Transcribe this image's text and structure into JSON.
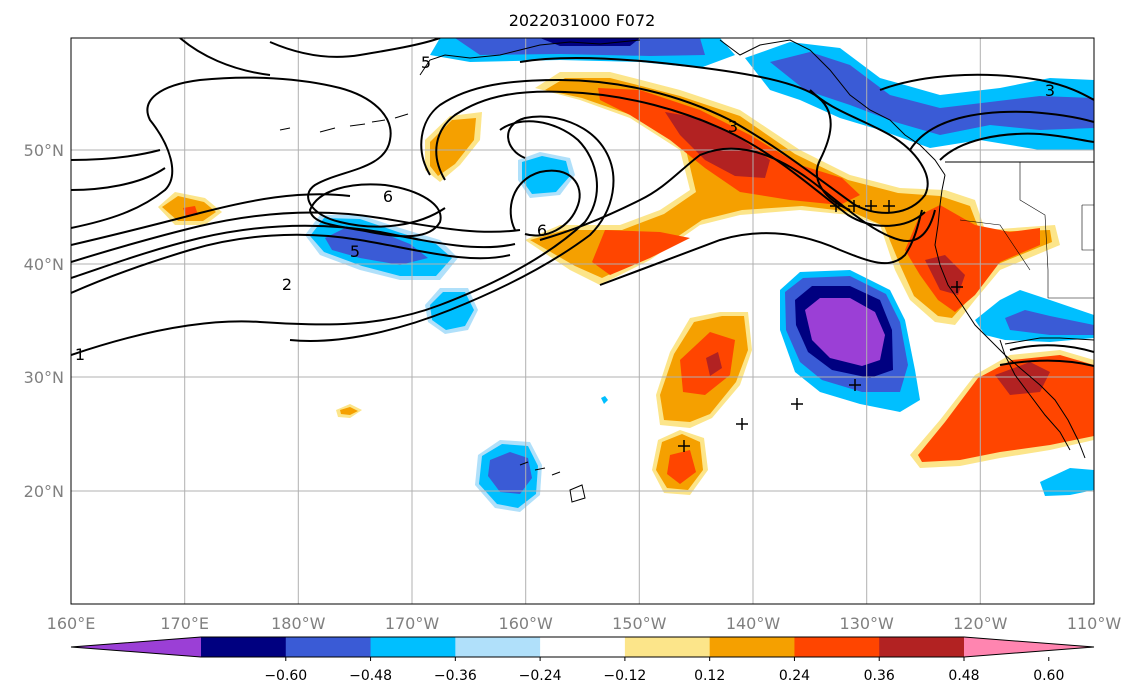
{
  "title": "2022031000 F072",
  "map": {
    "x_ticks": [
      "160°E",
      "170°E",
      "180°W",
      "170°W",
      "160°W",
      "150°W",
      "140°W",
      "130°W",
      "120°W",
      "110°W"
    ],
    "y_ticks": [
      "50°N",
      "40°N",
      "30°N",
      "20°N"
    ],
    "grid": true
  },
  "colorbar": {
    "colors": [
      "#9b3fd6",
      "#000080",
      "#3a5bd6",
      "#00bfff",
      "#b0e0fa",
      "#ffffff",
      "#fce58a",
      "#f5a000",
      "#ff4500",
      "#b22222",
      "#ff85b0"
    ],
    "tick_labels": [
      "−0.60",
      "−0.48",
      "−0.36",
      "−0.24",
      "−0.12",
      "0.12",
      "0.24",
      "0.36",
      "0.48",
      "0.60"
    ],
    "extend": "both"
  },
  "contour_labels": [
    "5",
    "6",
    "5",
    "2",
    "1",
    "6",
    "3",
    "3"
  ]
}
